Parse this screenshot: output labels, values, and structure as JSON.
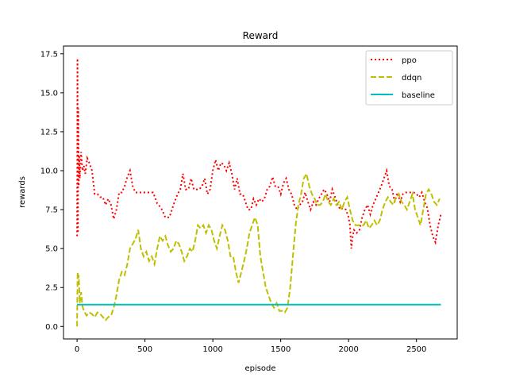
{
  "chart_data": {
    "type": "line",
    "title": "Reward",
    "xlabel": "episode",
    "ylabel": "rewards",
    "xlim": [
      -100,
      2800
    ],
    "ylim": [
      -0.8,
      18.0
    ],
    "xticks": [
      0,
      500,
      1000,
      1500,
      2000,
      2500
    ],
    "xtick_labels": [
      "0",
      "500",
      "1000",
      "1500",
      "2000",
      "2500"
    ],
    "yticks": [
      0.0,
      2.5,
      5.0,
      7.5,
      10.0,
      12.5,
      15.0,
      17.5
    ],
    "ytick_labels": [
      "0.0",
      "2.5",
      "5.0",
      "7.5",
      "10.0",
      "12.5",
      "15.0",
      "17.5"
    ],
    "grid": false,
    "legend_position": "top-right",
    "series": [
      {
        "name": "ppo",
        "color": "#ff0000",
        "style": "dotted",
        "x": [
          0,
          3,
          6,
          9,
          12,
          15,
          20,
          25,
          30,
          40,
          50,
          60,
          75,
          90,
          110,
          130,
          150,
          170,
          190,
          210,
          230,
          250,
          270,
          290,
          310,
          330,
          350,
          370,
          390,
          410,
          430,
          450,
          470,
          500,
          530,
          560,
          590,
          620,
          650,
          680,
          710,
          740,
          760,
          780,
          800,
          820,
          840,
          860,
          880,
          900,
          920,
          940,
          960,
          980,
          1000,
          1020,
          1040,
          1060,
          1080,
          1100,
          1120,
          1140,
          1160,
          1180,
          1200,
          1220,
          1240,
          1260,
          1280,
          1300,
          1320,
          1340,
          1360,
          1380,
          1400,
          1420,
          1440,
          1460,
          1480,
          1500,
          1520,
          1540,
          1560,
          1580,
          1600,
          1620,
          1640,
          1660,
          1680,
          1700,
          1720,
          1740,
          1760,
          1780,
          1800,
          1820,
          1840,
          1860,
          1880,
          1900,
          1920,
          1940,
          1960,
          1980,
          2000,
          2010,
          2020,
          2030,
          2040,
          2060,
          2080,
          2100,
          2120,
          2140,
          2160,
          2180,
          2200,
          2220,
          2240,
          2260,
          2280,
          2300,
          2320,
          2340,
          2360,
          2380,
          2400,
          2420,
          2440,
          2460,
          2480,
          2500,
          2520,
          2540,
          2560,
          2580,
          2600,
          2620,
          2640,
          2660,
          2680
        ],
        "values": [
          5.8,
          17.2,
          6.0,
          14.0,
          9.0,
          11.0,
          9.5,
          10.5,
          11.2,
          10.0,
          10.3,
          9.8,
          10.8,
          10.5,
          10.0,
          8.5,
          8.5,
          8.3,
          8.3,
          7.8,
          8.2,
          7.8,
          6.9,
          7.5,
          8.6,
          8.6,
          9.0,
          9.6,
          10.0,
          9.0,
          8.6,
          8.6,
          8.6,
          8.6,
          8.6,
          8.6,
          7.9,
          7.6,
          7.0,
          7.0,
          7.8,
          8.5,
          8.8,
          9.8,
          8.8,
          8.8,
          9.5,
          8.8,
          8.8,
          8.8,
          9.0,
          9.5,
          8.5,
          8.8,
          10.0,
          10.7,
          10.0,
          10.5,
          10.4,
          10.0,
          10.5,
          9.8,
          8.8,
          9.5,
          8.5,
          8.5,
          8.0,
          7.5,
          7.5,
          8.2,
          7.8,
          8.2,
          8.0,
          8.2,
          8.8,
          9.0,
          9.6,
          9.0,
          9.0,
          8.5,
          9.2,
          9.5,
          8.8,
          8.5,
          7.8,
          7.5,
          7.8,
          8.0,
          8.6,
          8.0,
          7.5,
          8.0,
          7.8,
          8.2,
          8.5,
          8.8,
          8.5,
          8.0,
          8.8,
          8.3,
          7.8,
          7.5,
          7.6,
          7.5,
          7.0,
          6.5,
          5.0,
          5.8,
          6.2,
          6.0,
          6.2,
          7.0,
          7.5,
          7.8,
          7.2,
          7.8,
          8.2,
          8.6,
          9.0,
          9.5,
          10.0,
          9.0,
          8.8,
          8.0,
          8.6,
          8.0,
          8.5,
          8.6,
          8.6,
          8.6,
          8.6,
          8.5,
          8.3,
          8.6,
          8.0,
          7.6,
          6.5,
          5.8,
          5.4,
          6.5,
          7.2
        ]
      },
      {
        "name": "ddqn",
        "color": "#bfbf00",
        "style": "dashed",
        "x": [
          0,
          4,
          8,
          12,
          20,
          30,
          40,
          50,
          70,
          90,
          110,
          130,
          150,
          170,
          190,
          210,
          230,
          250,
          270,
          290,
          310,
          330,
          350,
          370,
          390,
          410,
          430,
          450,
          470,
          490,
          510,
          530,
          550,
          570,
          590,
          610,
          630,
          650,
          670,
          690,
          710,
          730,
          750,
          770,
          790,
          810,
          830,
          850,
          870,
          890,
          910,
          930,
          950,
          970,
          990,
          1010,
          1030,
          1050,
          1070,
          1090,
          1110,
          1130,
          1150,
          1170,
          1190,
          1210,
          1230,
          1250,
          1270,
          1290,
          1310,
          1330,
          1350,
          1370,
          1390,
          1410,
          1430,
          1450,
          1470,
          1490,
          1510,
          1530,
          1550,
          1570,
          1590,
          1610,
          1630,
          1650,
          1670,
          1690,
          1710,
          1730,
          1750,
          1770,
          1790,
          1810,
          1830,
          1850,
          1870,
          1890,
          1910,
          1930,
          1950,
          1970,
          1990,
          2010,
          2030,
          2050,
          2070,
          2090,
          2110,
          2130,
          2150,
          2170,
          2190,
          2210,
          2230,
          2250,
          2270,
          2290,
          2310,
          2330,
          2350,
          2370,
          2390,
          2410,
          2430,
          2450,
          2470,
          2490,
          2510,
          2530,
          2550,
          2570,
          2590,
          2610,
          2630,
          2650,
          2670
        ],
        "values": [
          0.0,
          3.5,
          3.0,
          3.3,
          1.5,
          2.2,
          1.3,
          1.0,
          0.7,
          0.9,
          0.8,
          0.6,
          0.9,
          0.8,
          0.6,
          0.4,
          0.6,
          0.7,
          1.2,
          2.0,
          3.0,
          3.5,
          3.3,
          4.0,
          5.0,
          5.3,
          5.6,
          6.2,
          5.0,
          4.5,
          4.8,
          4.2,
          4.5,
          4.0,
          5.0,
          5.8,
          5.5,
          5.8,
          5.2,
          4.8,
          5.0,
          5.5,
          5.3,
          4.8,
          4.2,
          4.5,
          5.0,
          4.8,
          5.5,
          6.5,
          6.3,
          6.5,
          6.0,
          6.5,
          6.2,
          5.5,
          5.0,
          5.8,
          6.5,
          6.2,
          5.5,
          4.5,
          4.5,
          3.5,
          2.8,
          3.5,
          4.2,
          5.0,
          6.0,
          6.5,
          7.0,
          6.5,
          4.5,
          3.5,
          2.5,
          2.0,
          1.5,
          1.2,
          1.5,
          1.0,
          1.0,
          0.9,
          1.2,
          2.5,
          4.5,
          6.5,
          7.8,
          8.5,
          9.5,
          9.8,
          9.0,
          8.5,
          8.2,
          7.8,
          7.8,
          8.0,
          8.5,
          8.0,
          7.8,
          8.2,
          7.8,
          8.0,
          7.5,
          8.0,
          8.3,
          7.5,
          6.8,
          6.5,
          6.5,
          6.5,
          6.5,
          6.8,
          6.3,
          6.5,
          6.8,
          6.5,
          6.8,
          7.5,
          8.0,
          8.3,
          8.0,
          7.8,
          8.3,
          8.5,
          8.0,
          7.8,
          7.5,
          8.0,
          8.5,
          7.5,
          7.0,
          6.5,
          7.5,
          8.5,
          8.8,
          8.5,
          8.0,
          7.8,
          8.2
        ]
      },
      {
        "name": "baseline",
        "color": "#00bfbf",
        "style": "solid",
        "x": [
          0,
          2680
        ],
        "values": [
          1.4,
          1.4
        ]
      }
    ]
  }
}
